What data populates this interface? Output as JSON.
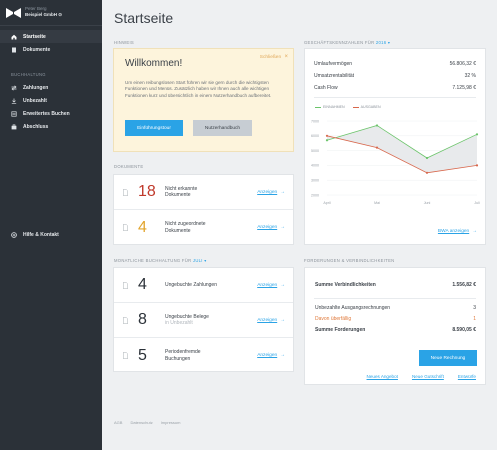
{
  "sidebar": {
    "user": "Peter Berg",
    "company": "Beispiel GmbH",
    "company_glyph": "⊙",
    "items": [
      {
        "label": "Startseite"
      },
      {
        "label": "Dokumente"
      }
    ],
    "section_label": "Buchhaltung",
    "accounting_items": [
      {
        "label": "Zahlungen"
      },
      {
        "label": "Unbezahlt"
      },
      {
        "label": "Erweitertes Buchen"
      },
      {
        "label": "Abschluss"
      }
    ],
    "help_label": "Hilfe & Kontakt"
  },
  "page_title": "Startseite",
  "hints": {
    "section_label": "Hinweis",
    "title": "Willkommen!",
    "close_label": "Schließen",
    "text": "Um einen reibungslosen Start führen wir sie gern durch die wichtigsten Funktionen und Menüs. Zusätzlich haben wir Ihnen auch alle wichtigen Funktionen kurz und übersichtlich in einem Nutzerhandbuch aufbereitet.",
    "primary_button": "Einführungstour",
    "secondary_button": "Nutzerhandbuch"
  },
  "documents": {
    "section_label": "Dokumente",
    "rows": [
      {
        "number": "18",
        "text": "Nicht erkannte",
        "text2": "Dokumente",
        "link": "Anzeigen"
      },
      {
        "number": "4",
        "text": "Nicht zugeordnete",
        "text2": "Dokumente",
        "link": "Anzeigen"
      }
    ]
  },
  "monthly": {
    "section_label": "Monatliche Buchhaltung für",
    "month": "Juli",
    "rows": [
      {
        "number": "4",
        "text": "Ungebuchte Zahlungen",
        "sub": "",
        "link": "Anzeigen"
      },
      {
        "number": "8",
        "text": "Ungebuchte Belege",
        "sub": "in Unbezahlt",
        "link": "Anzeigen"
      },
      {
        "number": "5",
        "text": "Periodenfremde",
        "text2": "Buchungen",
        "link": "Anzeigen"
      }
    ]
  },
  "business": {
    "section_label": "Geschäftskennzahlen für",
    "year": "2016",
    "metrics": [
      {
        "label": "Umlaufvermögen",
        "value": "56.806,32 €"
      },
      {
        "label": "Umsatzrentabilität",
        "value": "32 %"
      },
      {
        "label": "Cash Flow",
        "value": "7.125,98 €"
      }
    ],
    "bwa_link": "BWA anzeigen"
  },
  "chart_data": {
    "type": "line",
    "x": [
      "April",
      "Mai",
      "Juni",
      "Juli"
    ],
    "yticks": [
      7000,
      6000,
      5000,
      4000,
      3000,
      2000
    ],
    "ylim": [
      2000,
      7000
    ],
    "grid": true,
    "legend_position": "top-left",
    "series": [
      {
        "name": "Einnahmen",
        "color": "#6bc46a",
        "values": [
          5700,
          6700,
          4500,
          6100
        ]
      },
      {
        "name": "Ausgaben",
        "color": "#d8674c",
        "values": [
          6000,
          5200,
          3500,
          4000
        ]
      }
    ]
  },
  "receivables": {
    "section_label": "Forderungen & Verbindlichkeiten",
    "payables_label": "Summe Verbindlichkeiten",
    "payables_value": "1.556,82 €",
    "unpaid_label": "Unbezahlte Ausgangsrechnungen",
    "unpaid_value": "3",
    "overdue_label": "Davon überfällig",
    "overdue_value": "1",
    "total_label": "Summe Forderungen",
    "total_value": "8.590,05 €",
    "new_invoice_button": "Neue Rechnung",
    "links": [
      "Neues Angebot",
      "Neue Gutschrift",
      "Entwürfe"
    ]
  },
  "footer": [
    "AGB",
    "Datenschutz",
    "Impressum"
  ],
  "colors": {
    "accent": "#2aa3e6",
    "sidebar": "#2b3138",
    "red_number": "#c0392b",
    "yellow_number": "#e2a52e"
  }
}
